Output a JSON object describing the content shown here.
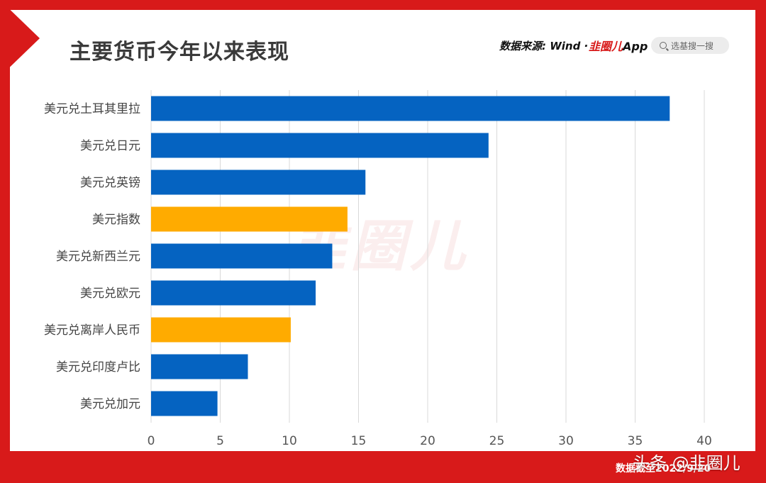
{
  "header": {
    "title": "主要货币今年以来表现",
    "source": "数据来源: Wind ·",
    "app_logo_mark": "韭圈儿",
    "app_logo_suffix": "App",
    "search_placeholder": "选基搜一搜"
  },
  "watermark": "韭圈儿",
  "footer": {
    "date_note": "数据截至2022/9/20",
    "brand": "头条 @韭圈儿"
  },
  "colors": {
    "frame": "#d81a1a",
    "bar_blue": "#0563c1",
    "bar_orange": "#ffab00",
    "grid": "#d9d9d9"
  },
  "chart_data": {
    "type": "bar",
    "orientation": "horizontal",
    "title": "主要货币今年以来表现",
    "categories": [
      "美元兑土耳其里拉",
      "美元兑日元",
      "美元兑英镑",
      "美元指数",
      "美元兑新西兰元",
      "美元兑欧元",
      "美元兑离岸人民币",
      "美元兑印度卢比",
      "美元兑加元"
    ],
    "values": [
      37.5,
      24.4,
      15.5,
      14.2,
      13.1,
      11.9,
      10.1,
      7.0,
      4.8
    ],
    "highlight": [
      "美元指数",
      "美元兑离岸人民币"
    ],
    "xlim": [
      0,
      40
    ],
    "xticks": [
      0,
      5,
      10,
      15,
      20,
      25,
      30,
      35,
      40
    ],
    "grid": "vertical",
    "xlabel": "",
    "ylabel": ""
  }
}
